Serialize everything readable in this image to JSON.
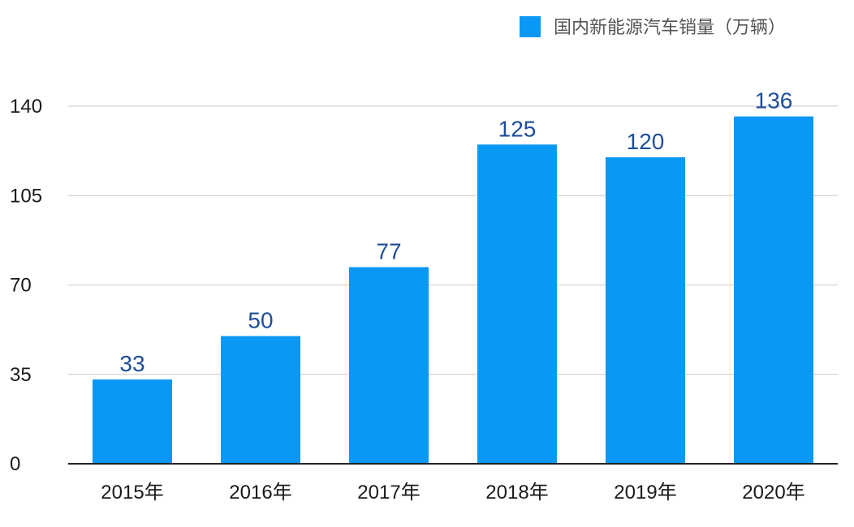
{
  "chart_data": {
    "type": "bar",
    "categories": [
      "2015年",
      "2016年",
      "2017年",
      "2018年",
      "2019年",
      "2020年"
    ],
    "series": [
      {
        "name": "国内新能源汽车销量（万辆）",
        "values": [
          33,
          50,
          77,
          125,
          120,
          136
        ],
        "color": "#0b98f5"
      }
    ],
    "yticks": [
      0,
      35,
      70,
      105,
      140
    ],
    "ylim": [
      0,
      140
    ],
    "grid": true,
    "legend_position": "top-right",
    "label_color": "#1f4e99"
  }
}
